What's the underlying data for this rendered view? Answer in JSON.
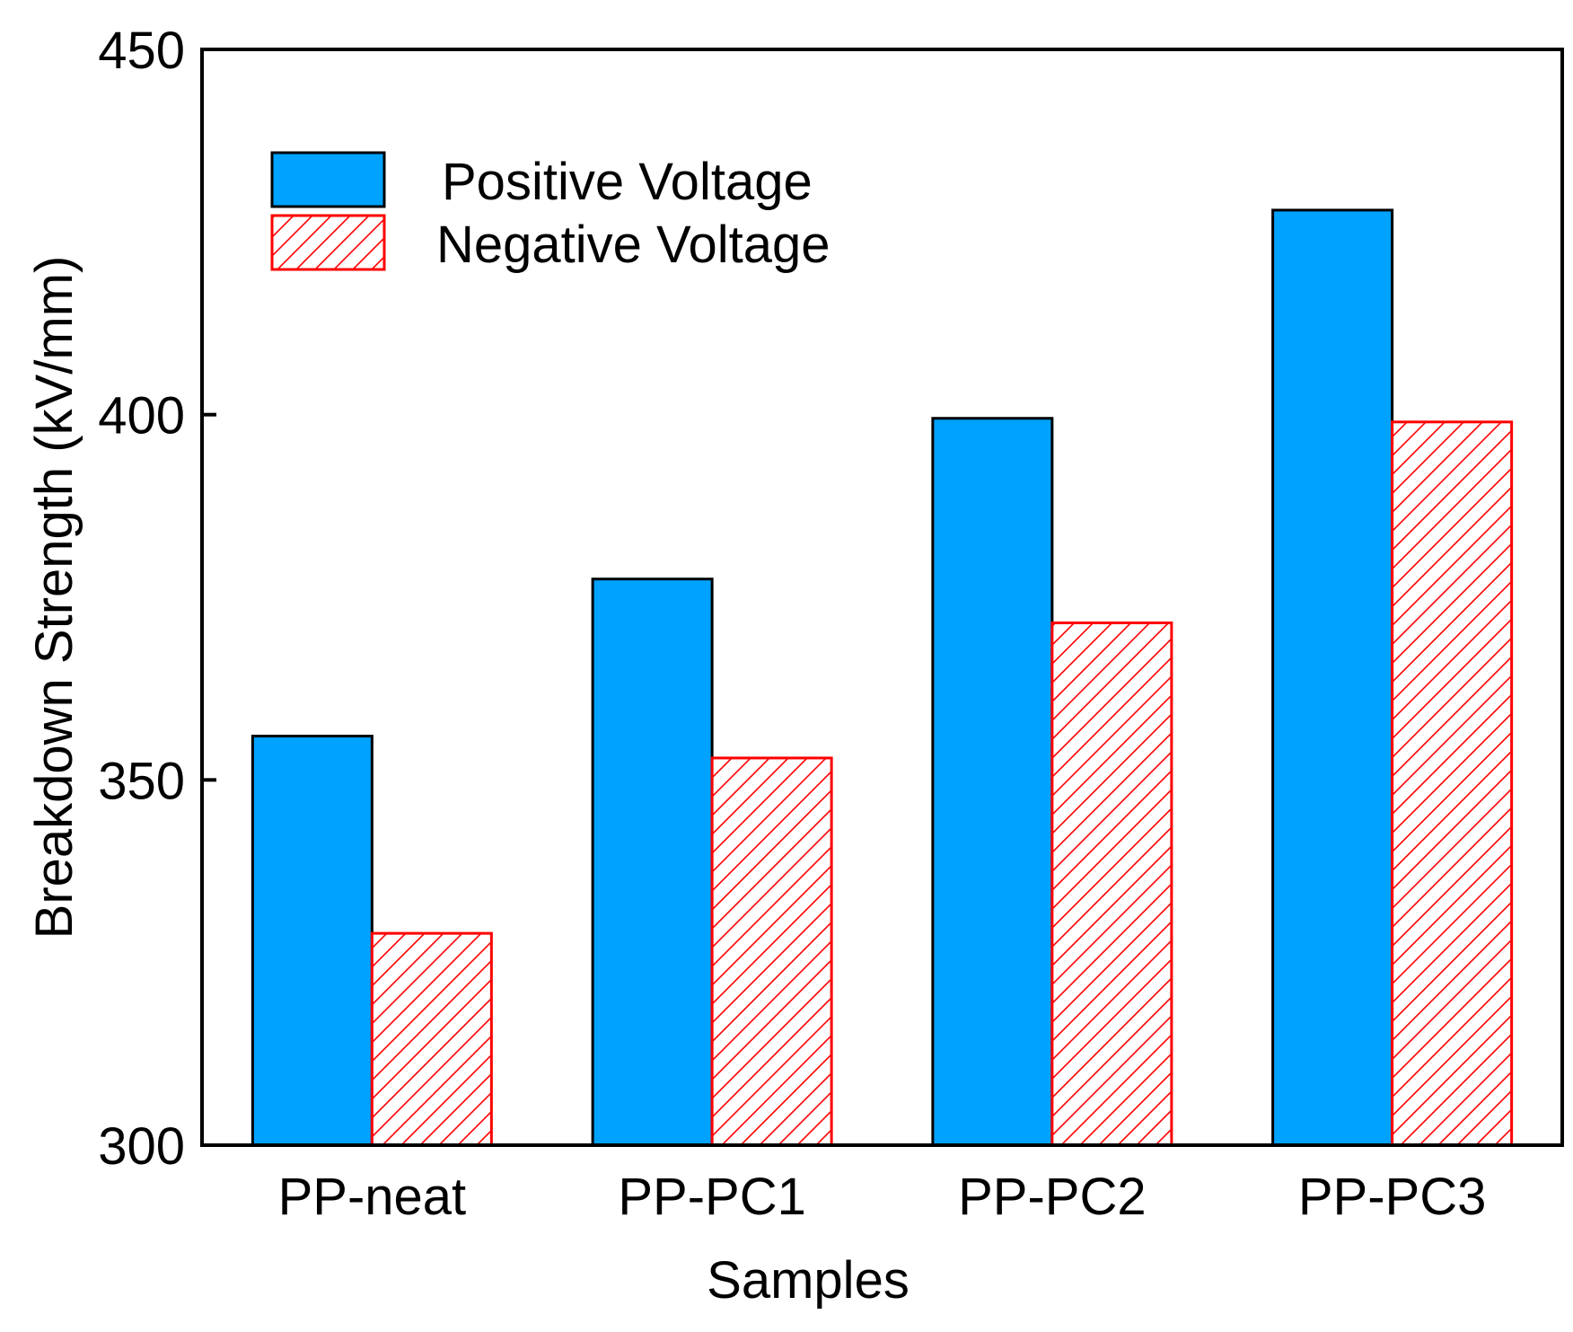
{
  "chart_data": {
    "type": "bar",
    "title": "",
    "xlabel": "Samples",
    "ylabel": "Breakdown Strength (kV/mm)",
    "ylim": [
      300,
      450
    ],
    "yticks": [
      300,
      350,
      400,
      450
    ],
    "grid": false,
    "legend_position": "top-left",
    "categories": [
      "PP-neat",
      "PP-PC1",
      "PP-PC2",
      "PP-PC3"
    ],
    "series": [
      {
        "name": "Positive Voltage",
        "values": [
          356,
          377.5,
          399.5,
          428
        ],
        "color": "#00a2ff",
        "edge_color": "#000000",
        "pattern": "solid"
      },
      {
        "name": "Negative Voltage",
        "values": [
          329,
          353,
          371.5,
          399
        ],
        "color": "#ffffff",
        "edge_color": "#ff0000",
        "pattern": "hatch"
      }
    ]
  }
}
